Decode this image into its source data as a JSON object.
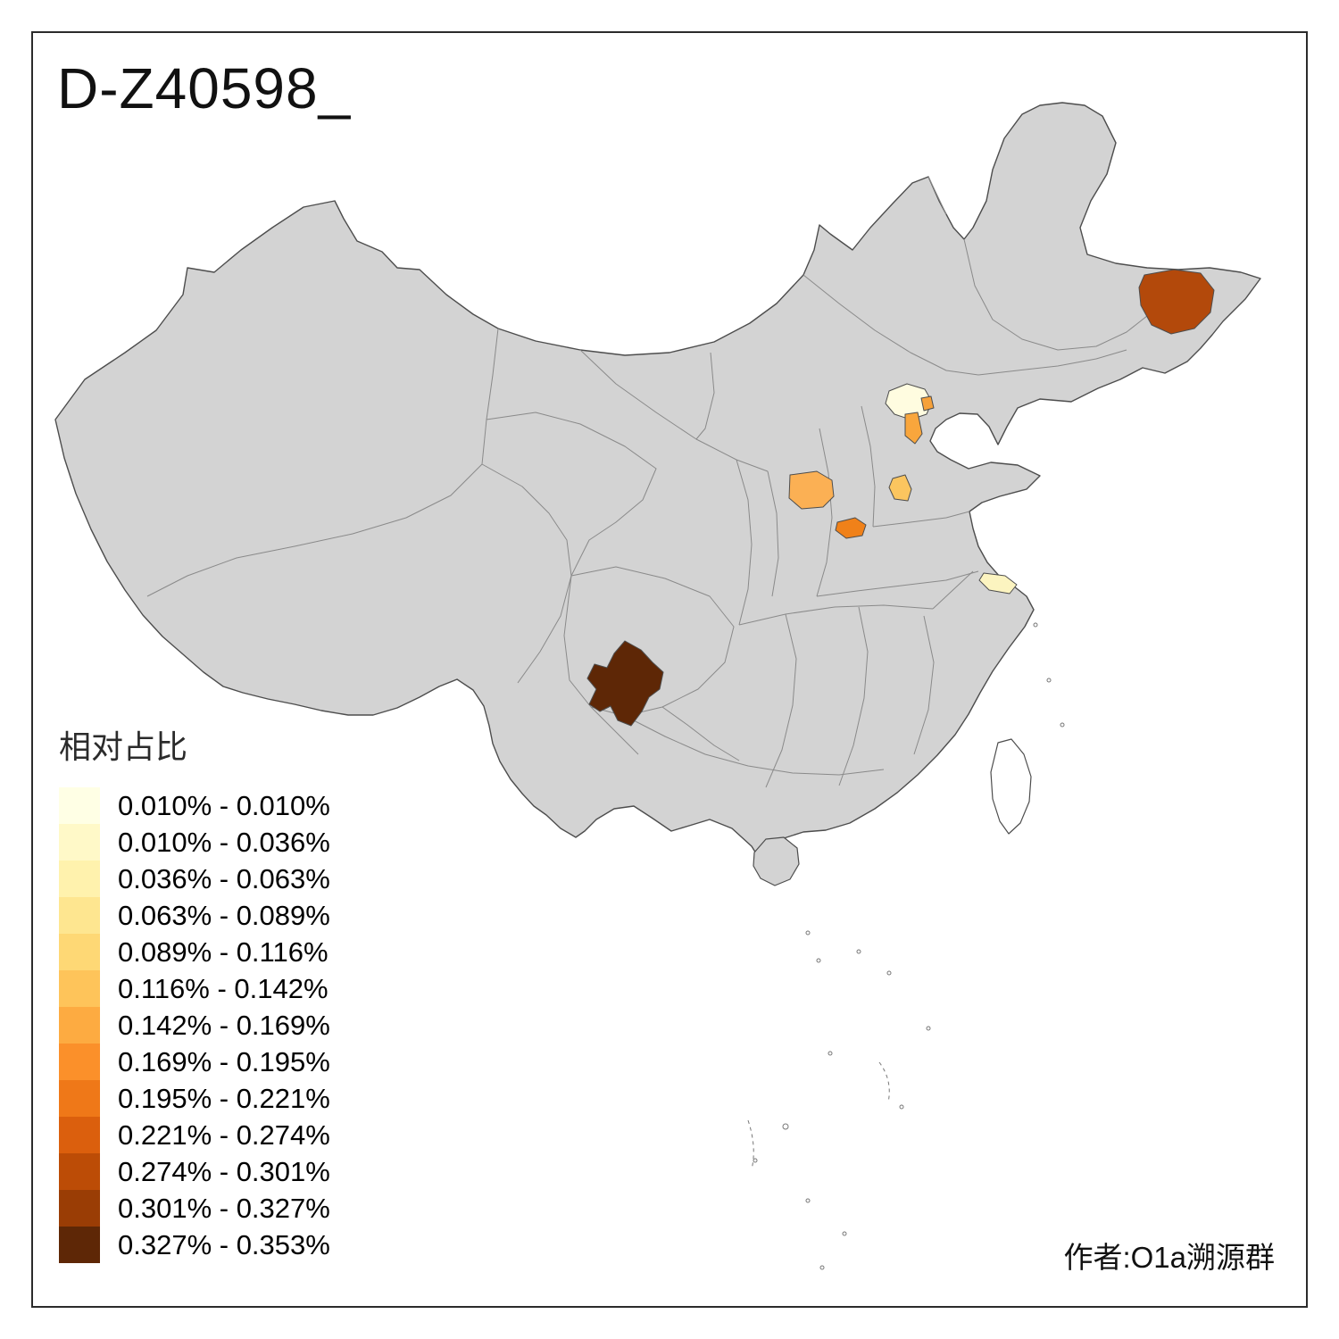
{
  "title": "D-Z40598_",
  "attribution": "作者:O1a溯源群",
  "legend": {
    "title": "相对占比",
    "bins": [
      {
        "label": "0.010% - 0.010%",
        "color": "#FFFFE5"
      },
      {
        "label": "0.010% - 0.036%",
        "color": "#FFF9C8"
      },
      {
        "label": "0.036% - 0.063%",
        "color": "#FFF2AD"
      },
      {
        "label": "0.063% - 0.089%",
        "color": "#FEE690"
      },
      {
        "label": "0.089% - 0.116%",
        "color": "#FED875"
      },
      {
        "label": "0.116% - 0.142%",
        "color": "#FEC45A"
      },
      {
        "label": "0.142% - 0.169%",
        "color": "#FDAB41"
      },
      {
        "label": "0.169% - 0.195%",
        "color": "#FB902A"
      },
      {
        "label": "0.195% - 0.221%",
        "color": "#EF7818"
      },
      {
        "label": "0.221% - 0.274%",
        "color": "#DB5F0D"
      },
      {
        "label": "0.274% - 0.301%",
        "color": "#BC4C06"
      },
      {
        "label": "0.301% - 0.327%",
        "color": "#9A3D05"
      },
      {
        "label": "0.327% - 0.353%",
        "color": "#5E2706"
      }
    ]
  },
  "map": {
    "background": "#FFFFFF",
    "land_color": "#D3D3D3",
    "outline_color": "#4D4D4D",
    "province_line_color": "#8A8A8A",
    "regions": [
      {
        "id": "region-northeast",
        "color": "#B3490B"
      },
      {
        "id": "region-beijing",
        "color": "#FFFCE0"
      },
      {
        "id": "region-beijing-dot",
        "color": "#F6A13A"
      },
      {
        "id": "region-tianjin-area",
        "color": "#F9A63C"
      },
      {
        "id": "region-central-west",
        "color": "#FBB054"
      },
      {
        "id": "region-central-east",
        "color": "#FBC55F"
      },
      {
        "id": "region-central-south",
        "color": "#F08119"
      },
      {
        "id": "region-east-coast",
        "color": "#FCF4C0"
      },
      {
        "id": "region-southwest",
        "color": "#5E2706"
      }
    ]
  }
}
